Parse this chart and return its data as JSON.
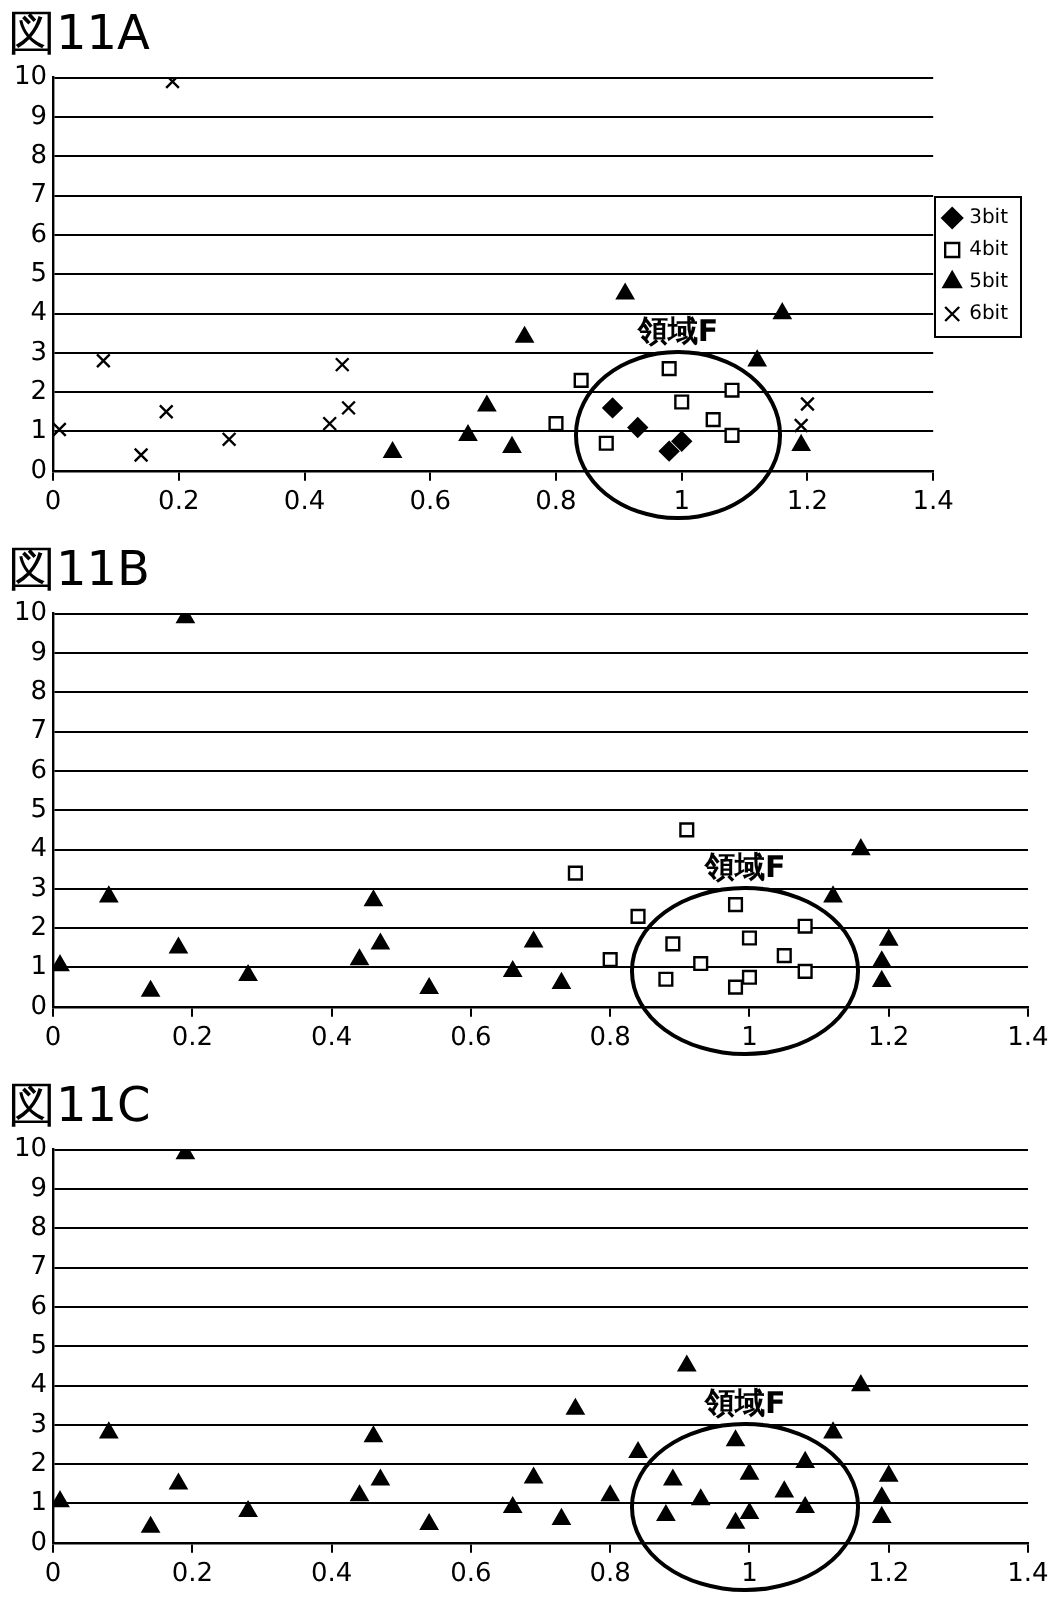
{
  "chart_data": [
    {
      "type": "scatter",
      "title": "図11A",
      "xlim": [
        0,
        1.4
      ],
      "xticks": [
        0,
        0.2,
        0.4,
        0.6,
        0.8,
        1,
        1.2,
        1.4
      ],
      "ylim": [
        0,
        10
      ],
      "yticks": [
        0,
        1,
        2,
        3,
        4,
        5,
        6,
        7,
        8,
        9,
        10
      ],
      "grid": "y",
      "legend": "right",
      "annotations": [
        "領域F"
      ],
      "series": [
        {
          "name": "3bit",
          "color": "#000000",
          "marker": "diamond",
          "x": [
            0.89,
            0.93,
            1.0,
            0.98
          ],
          "values": [
            1.6,
            1.1,
            0.75,
            0.5
          ]
        },
        {
          "name": "4bit",
          "color": "#000000",
          "marker": "square",
          "x": [
            0.98,
            0.84,
            1.08,
            1.0,
            1.05,
            1.08,
            0.8,
            0.88
          ],
          "values": [
            2.6,
            2.3,
            2.05,
            1.75,
            1.3,
            0.9,
            1.2,
            0.7
          ]
        },
        {
          "name": "5bit",
          "color": "#000000",
          "marker": "triangle",
          "x": [
            1.16,
            1.12,
            1.19,
            0.91,
            0.75,
            0.69,
            0.66,
            0.73,
            0.54
          ],
          "values": [
            4.0,
            2.8,
            0.65,
            4.5,
            3.4,
            1.65,
            0.9,
            0.6,
            0.47
          ]
        },
        {
          "name": "6bit",
          "color": "#000000",
          "marker": "cross",
          "x": [
            0.19,
            0.08,
            0.01,
            0.18,
            0.14,
            0.28,
            0.46,
            0.47,
            0.44,
            1.2,
            1.19
          ],
          "values": [
            9.9,
            2.8,
            1.05,
            1.5,
            0.4,
            0.8,
            2.7,
            1.6,
            1.2,
            1.7,
            1.15
          ]
        }
      ]
    },
    {
      "type": "scatter",
      "title": "図11B",
      "xlim": [
        0,
        1.4
      ],
      "xticks": [
        0,
        0.2,
        0.4,
        0.6,
        0.8,
        1,
        1.2,
        1.4
      ],
      "ylim": [
        0,
        10
      ],
      "yticks": [
        0,
        1,
        2,
        3,
        4,
        5,
        6,
        7,
        8,
        9,
        10
      ],
      "grid": "y",
      "annotations": [
        "領域F"
      ],
      "series": [
        {
          "color": "#000000",
          "marker": "square",
          "x": [
            0.91,
            0.75,
            0.98,
            0.84,
            1.08,
            1.0,
            0.89,
            1.05,
            0.8,
            0.93,
            1.08,
            1.0,
            0.88,
            0.98
          ],
          "values": [
            4.5,
            3.4,
            2.6,
            2.3,
            2.05,
            1.75,
            1.6,
            1.3,
            1.2,
            1.1,
            0.9,
            0.75,
            0.7,
            0.5
          ]
        },
        {
          "color": "#000000",
          "marker": "triangle",
          "x": [
            0.19,
            0.08,
            0.01,
            0.18,
            0.14,
            0.28,
            0.46,
            0.47,
            0.44,
            0.54,
            0.66,
            0.69,
            0.73,
            1.16,
            1.12,
            1.2,
            1.19,
            1.19
          ],
          "values": [
            9.9,
            2.8,
            1.05,
            1.5,
            0.4,
            0.8,
            2.7,
            1.6,
            1.2,
            0.47,
            0.9,
            1.65,
            0.6,
            4.0,
            2.8,
            1.7,
            1.15,
            0.65
          ]
        }
      ]
    },
    {
      "type": "scatter",
      "title": "図11C",
      "xlim": [
        0,
        1.4
      ],
      "xticks": [
        0,
        0.2,
        0.4,
        0.6,
        0.8,
        1,
        1.2,
        1.4
      ],
      "ylim": [
        0,
        10
      ],
      "yticks": [
        0,
        1,
        2,
        3,
        4,
        5,
        6,
        7,
        8,
        9,
        10
      ],
      "grid": "y",
      "annotations": [
        "領域F"
      ],
      "series": [
        {
          "color": "#000000",
          "marker": "triangle",
          "x": [
            0.19,
            0.08,
            0.01,
            0.18,
            0.14,
            0.28,
            0.46,
            0.47,
            0.44,
            0.54,
            0.66,
            0.69,
            0.73,
            0.75,
            0.91,
            1.16,
            1.12,
            1.2,
            1.19,
            1.19,
            0.98,
            0.84,
            1.08,
            1.0,
            1.05,
            1.08,
            0.8,
            0.88,
            0.89,
            0.93,
            1.0,
            0.98
          ],
          "values": [
            9.9,
            2.8,
            1.05,
            1.5,
            0.4,
            0.8,
            2.7,
            1.6,
            1.2,
            0.47,
            0.9,
            1.65,
            0.6,
            3.4,
            4.5,
            4.0,
            2.8,
            1.7,
            1.15,
            0.65,
            2.6,
            2.3,
            2.05,
            1.75,
            1.3,
            0.9,
            1.2,
            0.7,
            1.6,
            1.1,
            0.75,
            0.5
          ]
        }
      ]
    }
  ]
}
